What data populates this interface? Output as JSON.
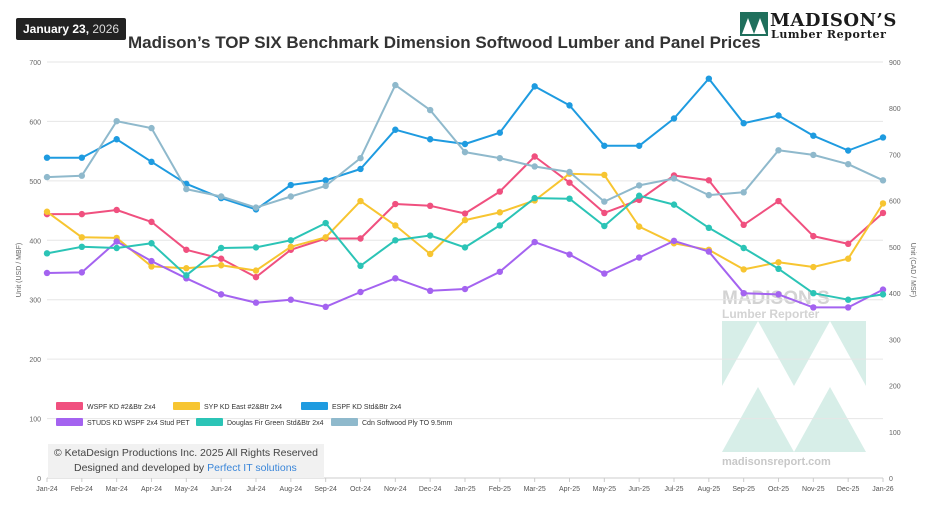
{
  "header": {
    "date_bold": "January 23,",
    "date_year": " 2026",
    "title": "Madison’s TOP SIX Benchmark Dimension Softwood Lumber and Panel Prices"
  },
  "logo": {
    "name": "MADISON’S",
    "sub": "Lumber Reporter"
  },
  "watermark": {
    "name": "MADISON’S",
    "sub": "Lumber Reporter",
    "url": "madisonsreport.com"
  },
  "credit": {
    "copyright": "© KetaDesign Productions Inc. 2025 All Rights Reserved",
    "designed_prefix": "Designed and developed by ",
    "designed_link": "Perfect IT solutions"
  },
  "colors": {
    "wspf": "#f0507f",
    "syp": "#f7c531",
    "espf": "#1e9be0",
    "studs": "#a463f0",
    "dfir": "#2bc4b6",
    "ply": "#8fb9cc",
    "watermark": "#d7eee8"
  },
  "chart_data": {
    "type": "line",
    "title": "Madison’s TOP SIX Benchmark Dimension Softwood Lumber and Panel Prices",
    "ylabel_left": "Unit (USD / MBF)",
    "ylabel_right": "Unit (CAD / MSF)",
    "ylim_left": [
      0,
      700
    ],
    "ylim_right": [
      0,
      900
    ],
    "yticks_left": [
      0,
      100,
      200,
      300,
      400,
      500,
      600,
      700
    ],
    "yticks_right": [
      0,
      100,
      200,
      300,
      400,
      500,
      600,
      700,
      800,
      900
    ],
    "grid": true,
    "legend_position": "bottom-left",
    "categories": [
      "Jan-24",
      "Feb-24",
      "Mar-24",
      "Apr-24",
      "May-24",
      "Jun-24",
      "Jul-24",
      "Aug-24",
      "Sep-24",
      "Oct-24",
      "Nov-24",
      "Dec-24",
      "Jan-25",
      "Feb-25",
      "Mar-25",
      "Apr-25",
      "May-25",
      "Jun-25",
      "Jul-25",
      "Aug-25",
      "Sep-25",
      "Oct-25",
      "Nov-25",
      "Dec-25",
      "Jan-26"
    ],
    "series": [
      {
        "name": "WSPF KD #2&Btr 2x4",
        "color_key": "wspf",
        "axis": "left",
        "values": [
          444,
          444,
          451,
          431,
          384,
          369,
          338,
          384,
          403,
          403,
          461,
          458,
          445,
          482,
          541,
          497,
          446,
          468,
          509,
          501,
          426,
          466,
          407,
          394,
          446
        ]
      },
      {
        "name": "SYP KD East #2&Btr 2x4",
        "color_key": "syp",
        "axis": "left",
        "values": [
          448,
          405,
          404,
          356,
          353,
          358,
          349,
          389,
          405,
          466,
          425,
          377,
          434,
          447,
          467,
          512,
          510,
          423,
          395,
          384,
          351,
          363,
          355,
          369,
          462
        ]
      },
      {
        "name": "ESPF KD Std&Btr 2x4",
        "color_key": "espf",
        "axis": "left",
        "values": [
          539,
          539,
          570,
          532,
          495,
          471,
          452,
          493,
          501,
          520,
          586,
          570,
          562,
          581,
          659,
          627,
          559,
          559,
          605,
          672,
          597,
          610,
          576,
          551,
          573
        ]
      },
      {
        "name": "STUDS KD WSPF 2x4 Stud PET",
        "color_key": "studs",
        "axis": "left",
        "values": [
          345,
          346,
          398,
          365,
          336,
          309,
          295,
          300,
          288,
          313,
          336,
          315,
          318,
          347,
          397,
          376,
          344,
          371,
          399,
          381,
          311,
          309,
          287,
          287,
          317
        ]
      },
      {
        "name": "Douglas Fir Green Std&Btr 2x4",
        "color_key": "dfir",
        "axis": "left",
        "values": [
          378,
          389,
          387,
          395,
          341,
          387,
          388,
          400,
          429,
          357,
          400,
          408,
          388,
          425,
          471,
          470,
          424,
          475,
          460,
          421,
          387,
          352,
          311,
          300,
          309
        ]
      },
      {
        "name": "Cdn Softwood Ply TO 9.5mm",
        "color_key": "ply",
        "axis": "right",
        "values": [
          651,
          654,
          772,
          757,
          625,
          609,
          585,
          609,
          632,
          692,
          850,
          796,
          705,
          692,
          674,
          662,
          598,
          633,
          648,
          612,
          618,
          709,
          699,
          679,
          644
        ]
      }
    ]
  }
}
